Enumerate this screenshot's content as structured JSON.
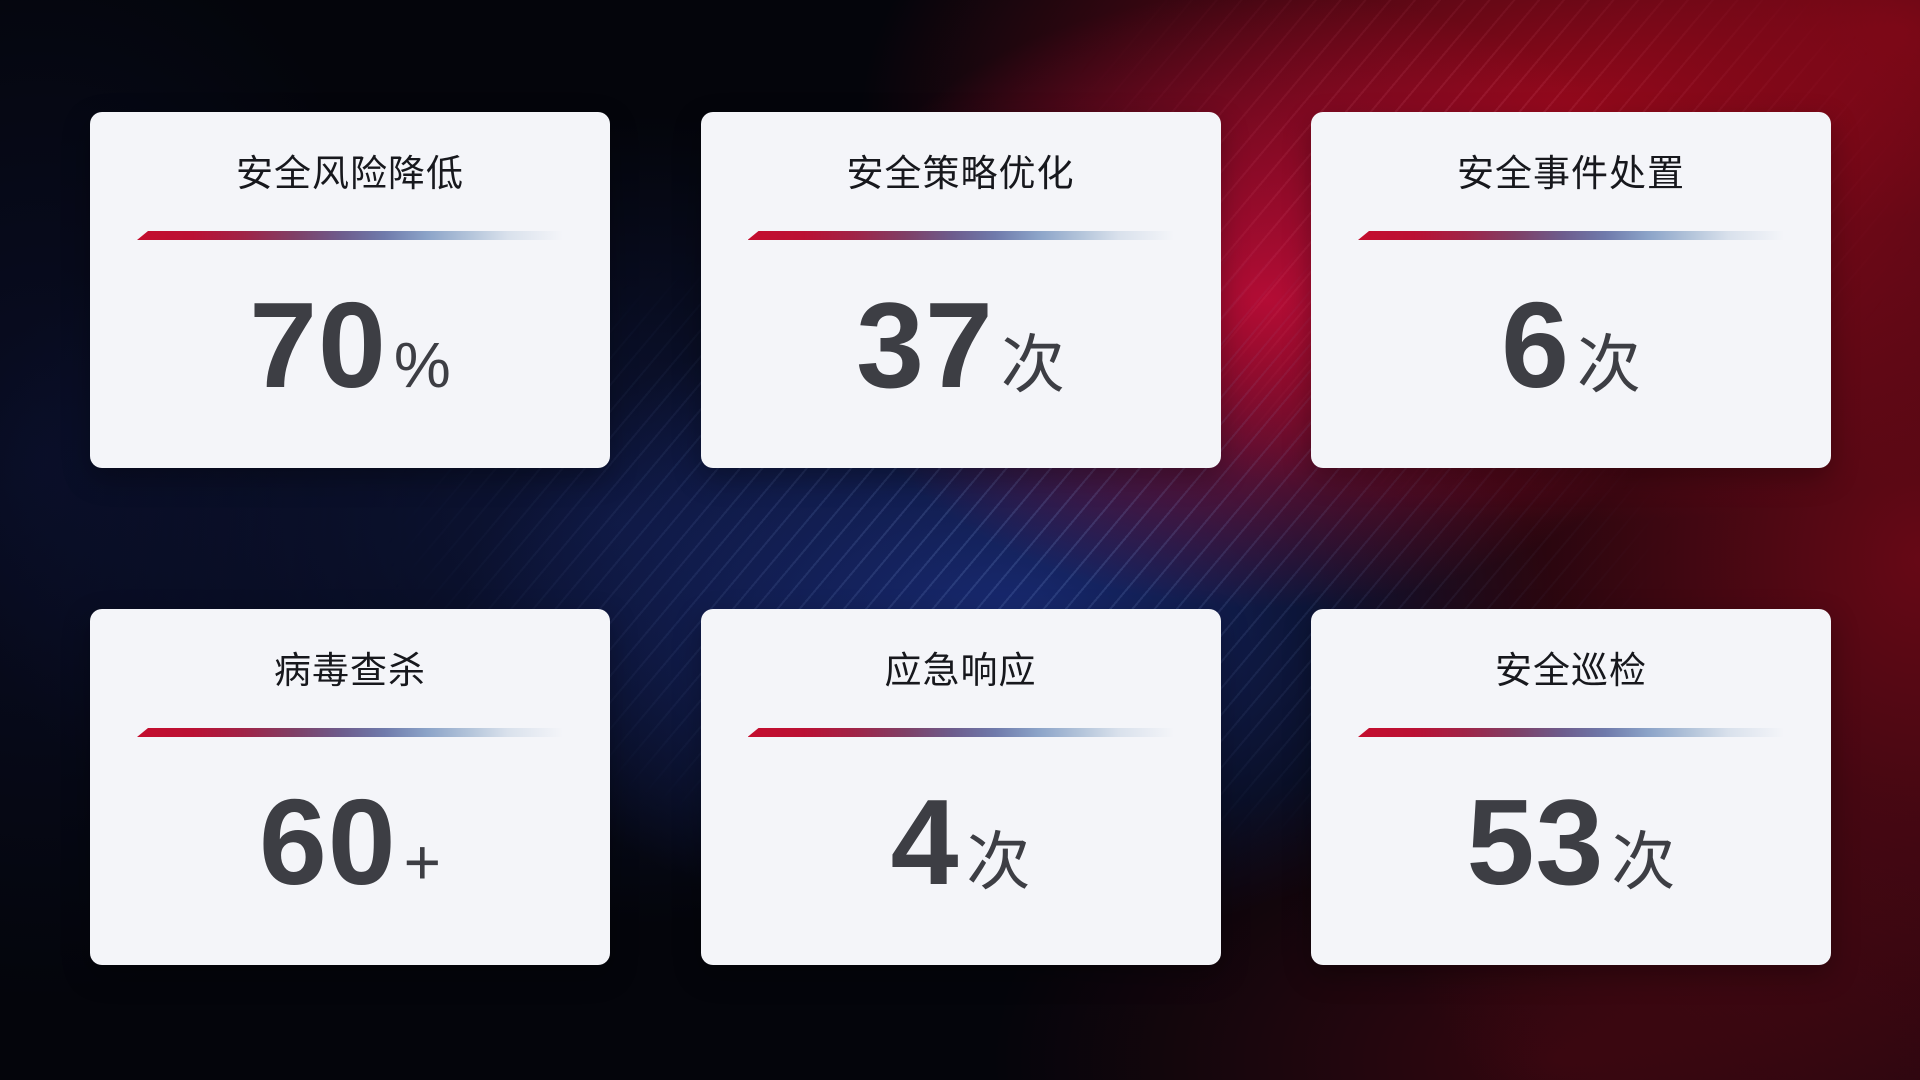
{
  "cards": [
    {
      "label": "安全风险降低",
      "value": "70",
      "unit": "%"
    },
    {
      "label": "安全策略优化",
      "value": "37",
      "unit": "次"
    },
    {
      "label": "安全事件处置",
      "value": "6",
      "unit": "次"
    },
    {
      "label": "病毒查杀",
      "value": "60",
      "unit": "+"
    },
    {
      "label": "应急响应",
      "value": "4",
      "unit": "次"
    },
    {
      "label": "安全巡检",
      "value": "53",
      "unit": "次"
    }
  ],
  "colors": {
    "card_background": "#f4f5f9",
    "title_text": "#17181d",
    "value_text": "#3d3e44",
    "divider_start_red": "#c40e2e",
    "divider_mid_blue": "#8ba3c8",
    "background_base": "#04050b",
    "background_red_glow": "#9e091c",
    "background_crimson_glow": "#ba0d37",
    "background_blue_glow": "#1b2f80"
  }
}
